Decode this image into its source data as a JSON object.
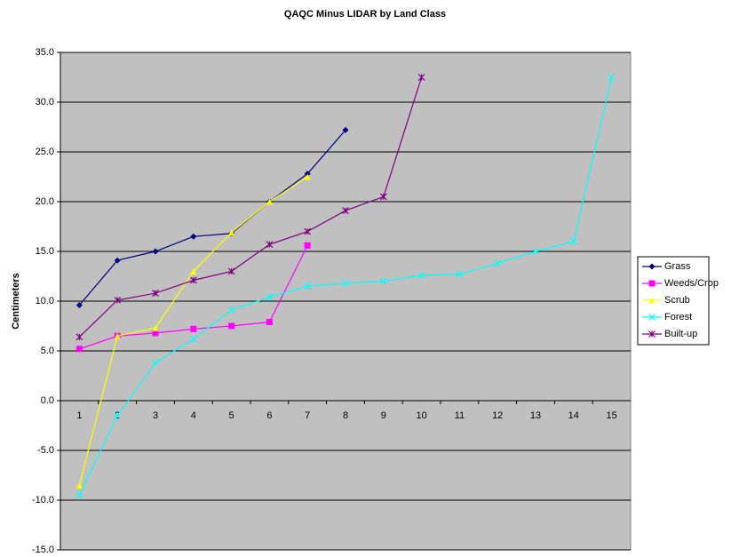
{
  "chart_data": {
    "type": "line",
    "title": "QAQC Minus LIDAR by Land Class",
    "y_label": "Centimeters",
    "categories": [
      1,
      2,
      3,
      4,
      5,
      6,
      7,
      8,
      9,
      10,
      11,
      12,
      13,
      14,
      15
    ],
    "ylim": [
      -15,
      35
    ],
    "yticks": [
      {
        "value": -15,
        "label": "-15.0"
      },
      {
        "value": -10,
        "label": "-10.0"
      },
      {
        "value": -5,
        "label": "-5.0"
      },
      {
        "value": 0,
        "label": "0.0"
      },
      {
        "value": 5,
        "label": "5.0"
      },
      {
        "value": 10,
        "label": "10.0"
      },
      {
        "value": 15,
        "label": "15.0"
      },
      {
        "value": 20,
        "label": "20.0"
      },
      {
        "value": 25,
        "label": "25.0"
      },
      {
        "value": 30,
        "label": "30.0"
      },
      {
        "value": 35,
        "label": "35.0"
      }
    ],
    "grid": true,
    "legend": "right",
    "plot_background": "#c0c0c0",
    "series": [
      {
        "name": "Grass",
        "color": "#000080",
        "marker": "diamond",
        "values": [
          9.6,
          14.1,
          15.0,
          16.5,
          16.8,
          20.0,
          22.8,
          27.2,
          null,
          null,
          null,
          null,
          null,
          null,
          null
        ]
      },
      {
        "name": "Weeds/Crop",
        "color": "#ff00ff",
        "marker": "square",
        "values": [
          5.2,
          6.5,
          6.8,
          7.2,
          7.5,
          7.9,
          15.6,
          null,
          null,
          null,
          null,
          null,
          null,
          null,
          null
        ]
      },
      {
        "name": "Scrub",
        "color": "#ffff00",
        "marker": "triangle",
        "values": [
          -8.5,
          6.5,
          7.3,
          13.0,
          16.9,
          20.0,
          22.5,
          null,
          null,
          null,
          null,
          null,
          null,
          null,
          null
        ]
      },
      {
        "name": "Forest",
        "color": "#00ffff",
        "marker": "x",
        "values": [
          -9.5,
          -1.5,
          3.8,
          6.2,
          9.1,
          10.4,
          11.5,
          11.8,
          12.0,
          12.6,
          12.7,
          13.8,
          15.0,
          16.0,
          32.5
        ]
      },
      {
        "name": "Built-up",
        "color": "#800080",
        "marker": "star",
        "values": [
          6.4,
          10.1,
          10.8,
          12.1,
          13.0,
          15.7,
          17.0,
          19.1,
          20.5,
          32.5,
          null,
          null,
          null,
          null,
          null
        ]
      }
    ]
  }
}
